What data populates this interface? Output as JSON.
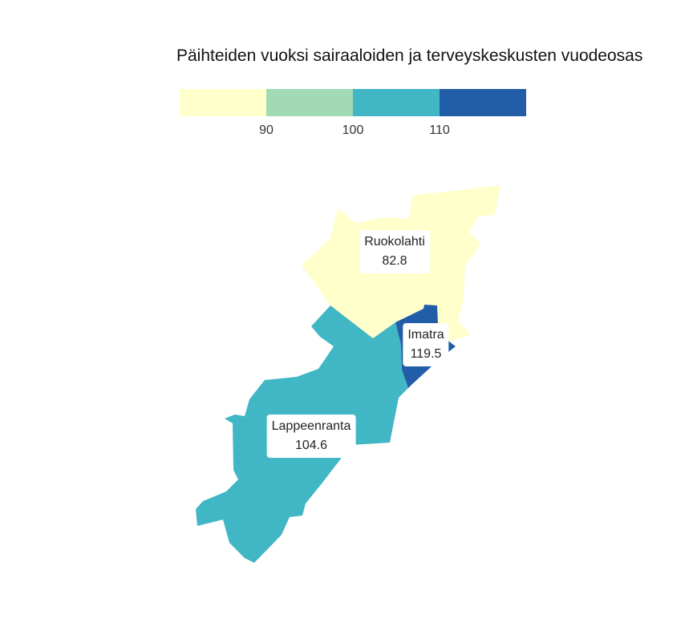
{
  "title": "Päihteiden vuoksi sairaaloiden ja terveyskeskusten vuodeosas",
  "legend": {
    "colors": [
      "#ffffcc",
      "#a1dab4",
      "#41b6c4",
      "#225ea8"
    ],
    "ticks": [
      "90",
      "100",
      "110"
    ]
  },
  "regions": [
    {
      "name": "Ruokolahti",
      "value": "82.8",
      "color": "#ffffcc"
    },
    {
      "name": "Imatra",
      "value": "119.5",
      "color": "#225ea8"
    },
    {
      "name": "Lappeenranta",
      "value": "104.6",
      "color": "#41b6c4"
    }
  ]
}
